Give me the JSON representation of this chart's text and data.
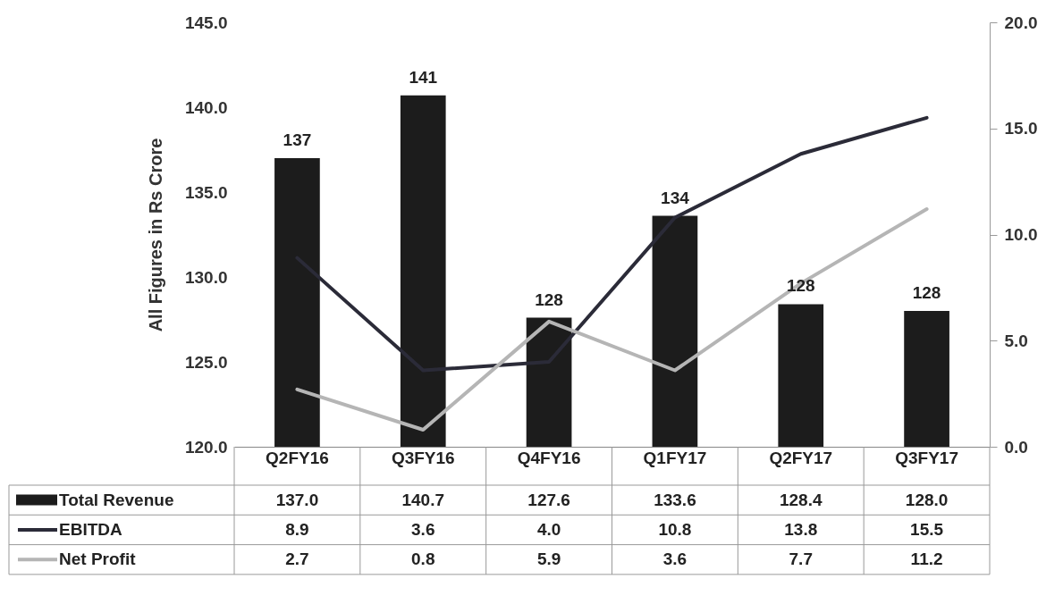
{
  "chart_data": {
    "type": "bar",
    "ylabel": "All Figures in Rs Crore",
    "categories": [
      "Q2FY16",
      "Q3FY16",
      "Q4FY16",
      "Q1FY17",
      "Q2FY17",
      "Q3FY17"
    ],
    "series": [
      {
        "name": "Total Revenue",
        "color": "#1c1c1c",
        "values": [
          137.0,
          140.7,
          127.6,
          133.6,
          128.4,
          128.0
        ],
        "value_labels": [
          "137.0",
          "140.7",
          "127.6",
          "133.6",
          "128.4",
          "128.0"
        ]
      },
      {
        "name": "EBITDA",
        "type": "line",
        "axis": "y2",
        "color": "#2b2b38",
        "values": [
          8.9,
          3.6,
          4.0,
          10.8,
          13.8,
          15.5
        ],
        "value_labels": [
          "8.9",
          "3.6",
          "4.0",
          "10.8",
          "13.8",
          "15.5"
        ]
      },
      {
        "name": "Net Profit",
        "type": "line",
        "axis": "y2",
        "color": "#b5b5b5",
        "values": [
          2.7,
          0.8,
          5.9,
          3.6,
          7.7,
          11.2
        ],
        "value_labels": [
          "2.7",
          "0.8",
          "5.9",
          "3.6",
          "7.7",
          "11.2"
        ]
      }
    ],
    "annotations": [
      {
        "text": "137",
        "x": "Q2FY16",
        "y": 137.0
      },
      {
        "text": "141",
        "x": "Q3FY16",
        "y": 140.7
      },
      {
        "text": "128",
        "x": "Q4FY16",
        "y": 127.6
      },
      {
        "text": "134",
        "x": "Q1FY17",
        "y": 133.6
      },
      {
        "text": "128",
        "x": "Q2FY17",
        "y": 128.4
      },
      {
        "text": "128",
        "x": "Q3FY17",
        "y": 128.0
      }
    ],
    "ylim": [
      120,
      145
    ],
    "yticks": [
      {
        "value": 120,
        "label": "120.0"
      },
      {
        "value": 125,
        "label": "125.0"
      },
      {
        "value": 130,
        "label": "130.0"
      },
      {
        "value": 135,
        "label": "135.0"
      },
      {
        "value": 140,
        "label": "140.0"
      },
      {
        "value": 145,
        "label": "145.0"
      }
    ],
    "y2lim": [
      0,
      20
    ],
    "y2ticks": [
      {
        "value": 0,
        "label": "0.0"
      },
      {
        "value": 5,
        "label": "5.0"
      },
      {
        "value": 10,
        "label": "10.0"
      },
      {
        "value": 15,
        "label": "15.0"
      },
      {
        "value": 20,
        "label": "20.0"
      }
    ],
    "legend": "bottom"
  }
}
